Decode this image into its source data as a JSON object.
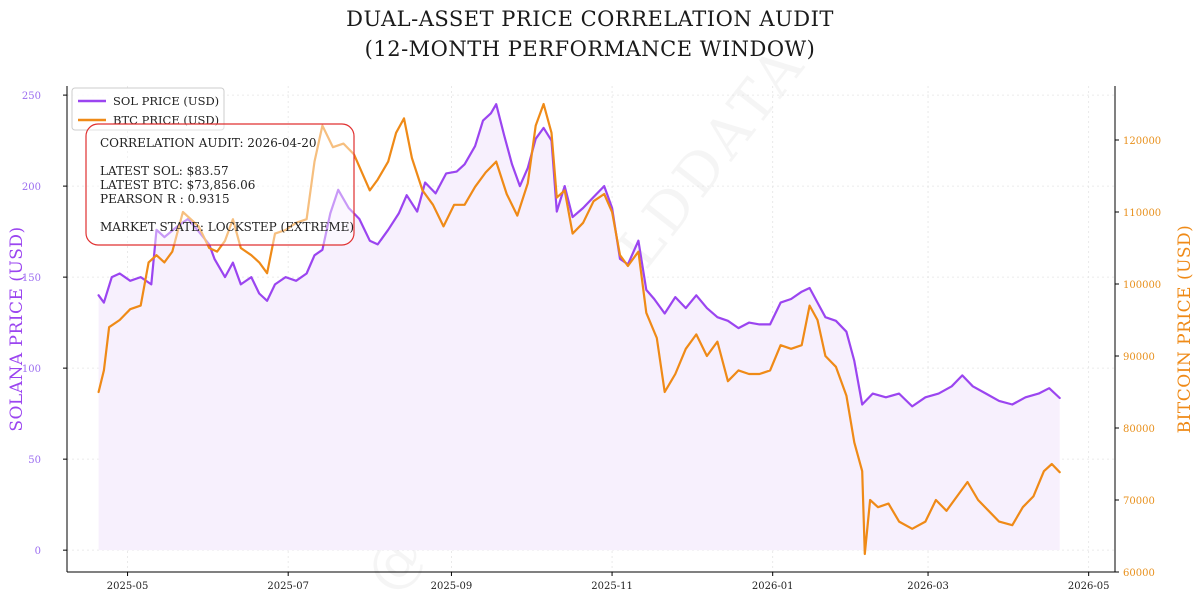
{
  "chart_data": {
    "type": "line",
    "title_lines": [
      "DUAL-ASSET PRICE CORRELATION AUDIT",
      "(12-MONTH PERFORMANCE WINDOW)"
    ],
    "ylabel_left": "SOLANA PRICE (USD)",
    "ylabel_right": "BITCOIN PRICE (USD)",
    "ylim_left": [
      -12,
      255
    ],
    "ylim_right": [
      60000,
      127500
    ],
    "xlim": [
      "2025-04-08",
      "2026-05-11"
    ],
    "yticks_left": [
      0,
      50,
      100,
      150,
      200,
      250
    ],
    "yticks_right": [
      60000,
      70000,
      80000,
      90000,
      100000,
      110000,
      120000
    ],
    "xticks": [
      {
        "date": "2025-05-01",
        "label": "2025-05"
      },
      {
        "date": "2025-07-01",
        "label": "2025-07"
      },
      {
        "date": "2025-09-01",
        "label": "2025-09"
      },
      {
        "date": "2025-11-01",
        "label": "2025-11"
      },
      {
        "date": "2026-01-01",
        "label": "2026-01"
      },
      {
        "date": "2026-03-01",
        "label": "2026-03"
      },
      {
        "date": "2026-05-01",
        "label": "2026-05"
      }
    ],
    "legend": {
      "placement": "top-left",
      "entries": [
        {
          "label": "SOL PRICE (USD)",
          "color": "#9b45f0"
        },
        {
          "label": "BTC PRICE (USD)",
          "color": "#ef8a17"
        }
      ]
    },
    "annotation": {
      "lines": [
        "CORRELATION AUDIT: 2026-04-20",
        "",
        "LATEST SOL: $83.57",
        "LATEST BTC: $73,856.06",
        "PEARSON R : 0.9315",
        "",
        "MARKET STATE: LOCKSTEP (EXTREME)"
      ],
      "border_color": "#e03030"
    },
    "watermark": "@GREENFIELDDATA",
    "series": [
      {
        "name": "SOL PRICE (USD)",
        "axis": "left",
        "color": "#9b45f0",
        "fill": "#f7f0fd",
        "points": [
          [
            "2025-04-20",
            140
          ],
          [
            "2025-04-22",
            136
          ],
          [
            "2025-04-25",
            150
          ],
          [
            "2025-04-28",
            152
          ],
          [
            "2025-05-02",
            148
          ],
          [
            "2025-05-06",
            150
          ],
          [
            "2025-05-10",
            146
          ],
          [
            "2025-05-12",
            176
          ],
          [
            "2025-05-15",
            172
          ],
          [
            "2025-05-20",
            178
          ],
          [
            "2025-05-24",
            182
          ],
          [
            "2025-05-28",
            175
          ],
          [
            "2025-06-01",
            168
          ],
          [
            "2025-06-03",
            160
          ],
          [
            "2025-06-07",
            150
          ],
          [
            "2025-06-10",
            158
          ],
          [
            "2025-06-13",
            146
          ],
          [
            "2025-06-17",
            150
          ],
          [
            "2025-06-20",
            141
          ],
          [
            "2025-06-23",
            137
          ],
          [
            "2025-06-26",
            146
          ],
          [
            "2025-06-30",
            150
          ],
          [
            "2025-07-04",
            148
          ],
          [
            "2025-07-08",
            152
          ],
          [
            "2025-07-11",
            162
          ],
          [
            "2025-07-14",
            165
          ],
          [
            "2025-07-17",
            185
          ],
          [
            "2025-07-20",
            198
          ],
          [
            "2025-07-24",
            188
          ],
          [
            "2025-07-28",
            182
          ],
          [
            "2025-08-01",
            170
          ],
          [
            "2025-08-04",
            168
          ],
          [
            "2025-08-08",
            176
          ],
          [
            "2025-08-12",
            185
          ],
          [
            "2025-08-15",
            195
          ],
          [
            "2025-08-19",
            186
          ],
          [
            "2025-08-22",
            202
          ],
          [
            "2025-08-26",
            196
          ],
          [
            "2025-08-30",
            207
          ],
          [
            "2025-09-03",
            208
          ],
          [
            "2025-09-06",
            212
          ],
          [
            "2025-09-10",
            222
          ],
          [
            "2025-09-13",
            236
          ],
          [
            "2025-09-16",
            240
          ],
          [
            "2025-09-18",
            245
          ],
          [
            "2025-09-21",
            228
          ],
          [
            "2025-09-24",
            212
          ],
          [
            "2025-09-27",
            200
          ],
          [
            "2025-09-30",
            210
          ],
          [
            "2025-10-03",
            226
          ],
          [
            "2025-10-06",
            232
          ],
          [
            "2025-10-09",
            225
          ],
          [
            "2025-10-11",
            186
          ],
          [
            "2025-10-14",
            200
          ],
          [
            "2025-10-17",
            183
          ],
          [
            "2025-10-21",
            188
          ],
          [
            "2025-10-25",
            194
          ],
          [
            "2025-10-29",
            200
          ],
          [
            "2025-11-01",
            188
          ],
          [
            "2025-11-04",
            160
          ],
          [
            "2025-11-07",
            157
          ],
          [
            "2025-11-11",
            170
          ],
          [
            "2025-11-14",
            143
          ],
          [
            "2025-11-17",
            138
          ],
          [
            "2025-11-21",
            130
          ],
          [
            "2025-11-25",
            139
          ],
          [
            "2025-11-29",
            133
          ],
          [
            "2025-12-03",
            140
          ],
          [
            "2025-12-07",
            133
          ],
          [
            "2025-12-11",
            128
          ],
          [
            "2025-12-15",
            126
          ],
          [
            "2025-12-19",
            122
          ],
          [
            "2025-12-23",
            125
          ],
          [
            "2025-12-27",
            124
          ],
          [
            "2025-12-31",
            124
          ],
          [
            "2026-01-04",
            136
          ],
          [
            "2026-01-08",
            138
          ],
          [
            "2026-01-12",
            142
          ],
          [
            "2026-01-15",
            144
          ],
          [
            "2026-01-18",
            136
          ],
          [
            "2026-01-21",
            128
          ],
          [
            "2026-01-25",
            126
          ],
          [
            "2026-01-29",
            120
          ],
          [
            "2026-02-01",
            104
          ],
          [
            "2026-02-04",
            80
          ],
          [
            "2026-02-08",
            86
          ],
          [
            "2026-02-13",
            84
          ],
          [
            "2026-02-18",
            86
          ],
          [
            "2026-02-23",
            79
          ],
          [
            "2026-02-28",
            84
          ],
          [
            "2026-03-05",
            86
          ],
          [
            "2026-03-10",
            90
          ],
          [
            "2026-03-14",
            96
          ],
          [
            "2026-03-18",
            90
          ],
          [
            "2026-03-23",
            86
          ],
          [
            "2026-03-28",
            82
          ],
          [
            "2026-04-02",
            80
          ],
          [
            "2026-04-07",
            84
          ],
          [
            "2026-04-12",
            86
          ],
          [
            "2026-04-16",
            89
          ],
          [
            "2026-04-20",
            83.57
          ]
        ]
      },
      {
        "name": "BTC PRICE (USD)",
        "axis": "right",
        "color": "#ef8a17",
        "points": [
          [
            "2025-04-20",
            85000
          ],
          [
            "2025-04-22",
            88000
          ],
          [
            "2025-04-24",
            94000
          ],
          [
            "2025-04-28",
            95000
          ],
          [
            "2025-05-02",
            96500
          ],
          [
            "2025-05-06",
            97000
          ],
          [
            "2025-05-09",
            103000
          ],
          [
            "2025-05-12",
            104000
          ],
          [
            "2025-05-15",
            103000
          ],
          [
            "2025-05-18",
            104500
          ],
          [
            "2025-05-22",
            110000
          ],
          [
            "2025-05-25",
            109000
          ],
          [
            "2025-05-28",
            108000
          ],
          [
            "2025-06-01",
            105000
          ],
          [
            "2025-06-04",
            104500
          ],
          [
            "2025-06-07",
            106000
          ],
          [
            "2025-06-10",
            109000
          ],
          [
            "2025-06-13",
            105000
          ],
          [
            "2025-06-17",
            104000
          ],
          [
            "2025-06-20",
            103000
          ],
          [
            "2025-06-23",
            101500
          ],
          [
            "2025-06-26",
            107000
          ],
          [
            "2025-06-30",
            107500
          ],
          [
            "2025-07-04",
            108500
          ],
          [
            "2025-07-08",
            109000
          ],
          [
            "2025-07-11",
            117000
          ],
          [
            "2025-07-14",
            122000
          ],
          [
            "2025-07-18",
            119000
          ],
          [
            "2025-07-22",
            119500
          ],
          [
            "2025-07-26",
            118000
          ],
          [
            "2025-08-01",
            113000
          ],
          [
            "2025-08-04",
            114500
          ],
          [
            "2025-08-08",
            117000
          ],
          [
            "2025-08-11",
            121000
          ],
          [
            "2025-08-14",
            123000
          ],
          [
            "2025-08-17",
            117500
          ],
          [
            "2025-08-21",
            113000
          ],
          [
            "2025-08-25",
            111000
          ],
          [
            "2025-08-29",
            108000
          ],
          [
            "2025-09-02",
            111000
          ],
          [
            "2025-09-06",
            111000
          ],
          [
            "2025-09-10",
            113500
          ],
          [
            "2025-09-14",
            115500
          ],
          [
            "2025-09-18",
            117000
          ],
          [
            "2025-09-22",
            112500
          ],
          [
            "2025-09-26",
            109500
          ],
          [
            "2025-09-30",
            114000
          ],
          [
            "2025-10-03",
            122000
          ],
          [
            "2025-10-06",
            125000
          ],
          [
            "2025-10-09",
            121000
          ],
          [
            "2025-10-11",
            112000
          ],
          [
            "2025-10-14",
            113000
          ],
          [
            "2025-10-17",
            107000
          ],
          [
            "2025-10-21",
            108500
          ],
          [
            "2025-10-25",
            111500
          ],
          [
            "2025-10-29",
            112500
          ],
          [
            "2025-11-01",
            110000
          ],
          [
            "2025-11-04",
            104000
          ],
          [
            "2025-11-07",
            102500
          ],
          [
            "2025-11-11",
            104500
          ],
          [
            "2025-11-14",
            96000
          ],
          [
            "2025-11-18",
            92500
          ],
          [
            "2025-11-21",
            85000
          ],
          [
            "2025-11-25",
            87500
          ],
          [
            "2025-11-29",
            91000
          ],
          [
            "2025-12-03",
            93000
          ],
          [
            "2025-12-07",
            90000
          ],
          [
            "2025-12-11",
            92000
          ],
          [
            "2025-12-15",
            86500
          ],
          [
            "2025-12-19",
            88000
          ],
          [
            "2025-12-23",
            87500
          ],
          [
            "2025-12-27",
            87500
          ],
          [
            "2025-12-31",
            88000
          ],
          [
            "2026-01-04",
            91500
          ],
          [
            "2026-01-08",
            91000
          ],
          [
            "2026-01-12",
            91500
          ],
          [
            "2026-01-15",
            97000
          ],
          [
            "2026-01-18",
            95000
          ],
          [
            "2026-01-21",
            90000
          ],
          [
            "2026-01-25",
            88500
          ],
          [
            "2026-01-29",
            84500
          ],
          [
            "2026-02-01",
            78000
          ],
          [
            "2026-02-04",
            74000
          ],
          [
            "2026-02-05",
            62500
          ],
          [
            "2026-02-07",
            70000
          ],
          [
            "2026-02-10",
            69000
          ],
          [
            "2026-02-14",
            69500
          ],
          [
            "2026-02-18",
            67000
          ],
          [
            "2026-02-23",
            66000
          ],
          [
            "2026-02-28",
            67000
          ],
          [
            "2026-03-04",
            70000
          ],
          [
            "2026-03-08",
            68500
          ],
          [
            "2026-03-12",
            70500
          ],
          [
            "2026-03-16",
            72500
          ],
          [
            "2026-03-20",
            70000
          ],
          [
            "2026-03-24",
            68500
          ],
          [
            "2026-03-28",
            67000
          ],
          [
            "2026-04-02",
            66500
          ],
          [
            "2026-04-06",
            69000
          ],
          [
            "2026-04-10",
            70500
          ],
          [
            "2026-04-14",
            74000
          ],
          [
            "2026-04-17",
            75000
          ],
          [
            "2026-04-20",
            73856.06
          ]
        ]
      }
    ]
  }
}
